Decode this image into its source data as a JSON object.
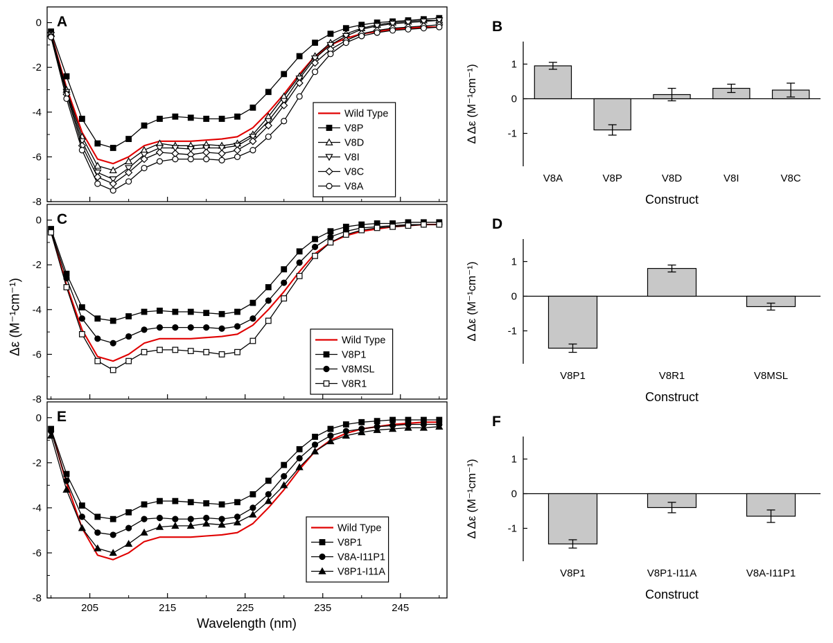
{
  "figure": {
    "shared_y_label": "Δε (M⁻¹cm⁻¹)",
    "shared_x_label": "Wavelength (nm)"
  },
  "chart_data": [
    {
      "id": "A",
      "type": "line",
      "panel_label": "A",
      "xlim": [
        199.5,
        251
      ],
      "ylim": [
        -8,
        0.7
      ],
      "xticks": [
        205,
        215,
        225,
        235,
        245
      ],
      "yticks": [
        0,
        -2,
        -4,
        -6,
        -8
      ],
      "x": [
        200,
        202,
        204,
        206,
        208,
        210,
        212,
        214,
        216,
        218,
        220,
        222,
        224,
        226,
        228,
        230,
        232,
        234,
        236,
        238,
        240,
        242,
        244,
        246,
        248,
        250
      ],
      "series": [
        {
          "name": "Wild Type",
          "color": "#e00000",
          "marker": "none",
          "values": [
            -0.5,
            -2.9,
            -4.9,
            -6.1,
            -6.3,
            -6.0,
            -5.5,
            -5.3,
            -5.3,
            -5.3,
            -5.25,
            -5.2,
            -5.1,
            -4.7,
            -4.0,
            -3.2,
            -2.3,
            -1.5,
            -1.0,
            -0.7,
            -0.5,
            -0.4,
            -0.3,
            -0.25,
            -0.2,
            -0.2
          ]
        },
        {
          "name": "V8P",
          "color": "#000000",
          "marker": "square",
          "values": [
            -0.4,
            -2.4,
            -4.3,
            -5.4,
            -5.6,
            -5.2,
            -4.6,
            -4.3,
            -4.2,
            -4.25,
            -4.3,
            -4.3,
            -4.2,
            -3.8,
            -3.1,
            -2.3,
            -1.5,
            -0.9,
            -0.5,
            -0.25,
            -0.1,
            0.0,
            0.05,
            0.1,
            0.15,
            0.2
          ]
        },
        {
          "name": "V8D",
          "color": "#000000",
          "marker": "triangle-up-open",
          "values": [
            -0.5,
            -3.0,
            -5.1,
            -6.4,
            -6.6,
            -6.2,
            -5.7,
            -5.4,
            -5.5,
            -5.5,
            -5.45,
            -5.5,
            -5.4,
            -5.0,
            -4.2,
            -3.3,
            -2.4,
            -1.5,
            -0.9,
            -0.5,
            -0.25,
            -0.1,
            0.0,
            0.05,
            0.1,
            0.1
          ]
        },
        {
          "name": "V8I",
          "color": "#000000",
          "marker": "triangle-down-open",
          "values": [
            -0.55,
            -3.1,
            -5.3,
            -6.7,
            -7.0,
            -6.5,
            -5.9,
            -5.6,
            -5.6,
            -5.65,
            -5.6,
            -5.6,
            -5.5,
            -5.1,
            -4.4,
            -3.5,
            -2.5,
            -1.6,
            -1.0,
            -0.6,
            -0.3,
            -0.15,
            -0.05,
            0.0,
            0.05,
            0.1
          ]
        },
        {
          "name": "V8C",
          "color": "#000000",
          "marker": "diamond-open",
          "values": [
            -0.6,
            -3.2,
            -5.5,
            -6.9,
            -7.2,
            -6.7,
            -6.1,
            -5.8,
            -5.85,
            -5.9,
            -5.8,
            -5.85,
            -5.7,
            -5.3,
            -4.6,
            -3.7,
            -2.7,
            -1.8,
            -1.2,
            -0.8,
            -0.5,
            -0.35,
            -0.25,
            -0.2,
            -0.15,
            -0.1
          ]
        },
        {
          "name": "V8A",
          "color": "#000000",
          "marker": "circle-open",
          "values": [
            -0.65,
            -3.4,
            -5.7,
            -7.2,
            -7.5,
            -7.1,
            -6.5,
            -6.2,
            -6.1,
            -6.1,
            -6.1,
            -6.15,
            -6.0,
            -5.7,
            -5.1,
            -4.4,
            -3.3,
            -2.2,
            -1.4,
            -0.9,
            -0.6,
            -0.45,
            -0.35,
            -0.3,
            -0.25,
            -0.2
          ]
        }
      ]
    },
    {
      "id": "B",
      "type": "bar",
      "panel_label": "B",
      "categories": [
        "V8A",
        "V8P",
        "V8D",
        "V8I",
        "V8C"
      ],
      "values": [
        0.95,
        -0.9,
        0.12,
        0.3,
        0.25
      ],
      "errors": [
        0.1,
        0.15,
        0.18,
        0.12,
        0.2
      ],
      "ylabel": "Δ Δε (M⁻¹cm⁻¹)",
      "xlabel": "Construct",
      "ylim": [
        -1.95,
        1.65
      ],
      "yticks": [
        1,
        0,
        -1
      ],
      "bar_color": "#c8c8c8"
    },
    {
      "id": "C",
      "type": "line",
      "panel_label": "C",
      "xlim": [
        199.5,
        251
      ],
      "ylim": [
        -8,
        0.7
      ],
      "xticks": [
        205,
        215,
        225,
        235,
        245
      ],
      "yticks": [
        0,
        -2,
        -4,
        -6,
        -8
      ],
      "x": [
        200,
        202,
        204,
        206,
        208,
        210,
        212,
        214,
        216,
        218,
        220,
        222,
        224,
        226,
        228,
        230,
        232,
        234,
        236,
        238,
        240,
        242,
        244,
        246,
        248,
        250
      ],
      "series": [
        {
          "name": "Wild Type",
          "color": "#e00000",
          "marker": "none",
          "values": [
            -0.5,
            -2.9,
            -4.9,
            -6.1,
            -6.3,
            -6.0,
            -5.5,
            -5.3,
            -5.3,
            -5.3,
            -5.25,
            -5.2,
            -5.1,
            -4.7,
            -4.0,
            -3.2,
            -2.3,
            -1.5,
            -1.0,
            -0.7,
            -0.5,
            -0.4,
            -0.3,
            -0.25,
            -0.2,
            -0.2
          ]
        },
        {
          "name": "V8P1",
          "color": "#000000",
          "marker": "square",
          "values": [
            -0.4,
            -2.4,
            -3.9,
            -4.4,
            -4.5,
            -4.3,
            -4.1,
            -4.05,
            -4.1,
            -4.1,
            -4.15,
            -4.2,
            -4.1,
            -3.7,
            -3.0,
            -2.2,
            -1.4,
            -0.85,
            -0.5,
            -0.3,
            -0.2,
            -0.15,
            -0.15,
            -0.1,
            -0.1,
            -0.1
          ]
        },
        {
          "name": "V8MSL",
          "color": "#000000",
          "marker": "circle",
          "values": [
            -0.5,
            -2.6,
            -4.4,
            -5.3,
            -5.5,
            -5.2,
            -4.9,
            -4.8,
            -4.8,
            -4.8,
            -4.8,
            -4.85,
            -4.75,
            -4.4,
            -3.6,
            -2.8,
            -1.9,
            -1.2,
            -0.75,
            -0.5,
            -0.35,
            -0.3,
            -0.25,
            -0.2,
            -0.2,
            -0.2
          ]
        },
        {
          "name": "V8R1",
          "color": "#000000",
          "marker": "square-open",
          "values": [
            -0.55,
            -3.0,
            -5.1,
            -6.3,
            -6.7,
            -6.3,
            -5.9,
            -5.8,
            -5.8,
            -5.85,
            -5.9,
            -6.0,
            -5.9,
            -5.4,
            -4.5,
            -3.5,
            -2.5,
            -1.6,
            -1.0,
            -0.65,
            -0.45,
            -0.35,
            -0.3,
            -0.25,
            -0.2,
            -0.2
          ]
        }
      ]
    },
    {
      "id": "D",
      "type": "bar",
      "panel_label": "D",
      "categories": [
        "V8P1",
        "V8R1",
        "V8MSL"
      ],
      "values": [
        -1.5,
        0.8,
        -0.3
      ],
      "errors": [
        0.12,
        0.1,
        0.1
      ],
      "ylabel": "Δ Δε (M⁻¹cm⁻¹)",
      "xlabel": "Construct",
      "ylim": [
        -1.95,
        1.65
      ],
      "yticks": [
        1,
        0,
        -1
      ],
      "bar_color": "#c8c8c8"
    },
    {
      "id": "E",
      "type": "line",
      "panel_label": "E",
      "xlim": [
        199.5,
        251
      ],
      "ylim": [
        -8,
        0.7
      ],
      "xticks": [
        205,
        215,
        225,
        235,
        245
      ],
      "yticks": [
        0,
        -2,
        -4,
        -6,
        -8
      ],
      "x": [
        200,
        202,
        204,
        206,
        208,
        210,
        212,
        214,
        216,
        218,
        220,
        222,
        224,
        226,
        228,
        230,
        232,
        234,
        236,
        238,
        240,
        242,
        244,
        246,
        248,
        250
      ],
      "series": [
        {
          "name": "Wild Type",
          "color": "#e00000",
          "marker": "none",
          "values": [
            -0.5,
            -2.9,
            -4.9,
            -6.1,
            -6.3,
            -6.0,
            -5.5,
            -5.3,
            -5.3,
            -5.3,
            -5.25,
            -5.2,
            -5.1,
            -4.7,
            -4.0,
            -3.2,
            -2.3,
            -1.5,
            -1.0,
            -0.7,
            -0.5,
            -0.4,
            -0.3,
            -0.25,
            -0.2,
            -0.2
          ]
        },
        {
          "name": "V8P1",
          "color": "#000000",
          "marker": "square",
          "values": [
            -0.5,
            -2.5,
            -3.9,
            -4.4,
            -4.5,
            -4.2,
            -3.85,
            -3.7,
            -3.7,
            -3.75,
            -3.8,
            -3.85,
            -3.75,
            -3.4,
            -2.8,
            -2.1,
            -1.4,
            -0.85,
            -0.5,
            -0.3,
            -0.2,
            -0.15,
            -0.1,
            -0.1,
            -0.1,
            -0.1
          ]
        },
        {
          "name": "V8A-I11P1",
          "color": "#000000",
          "marker": "circle",
          "values": [
            -0.6,
            -2.8,
            -4.4,
            -5.1,
            -5.2,
            -4.9,
            -4.5,
            -4.45,
            -4.5,
            -4.5,
            -4.45,
            -4.5,
            -4.4,
            -4.0,
            -3.4,
            -2.6,
            -1.8,
            -1.2,
            -0.8,
            -0.6,
            -0.5,
            -0.4,
            -0.35,
            -0.3,
            -0.3,
            -0.3
          ]
        },
        {
          "name": "V8P1-I11A",
          "color": "#000000",
          "marker": "triangle-up",
          "values": [
            -0.8,
            -3.2,
            -4.9,
            -5.8,
            -6.0,
            -5.6,
            -5.1,
            -4.85,
            -4.8,
            -4.8,
            -4.7,
            -4.75,
            -4.65,
            -4.3,
            -3.7,
            -3.0,
            -2.2,
            -1.5,
            -1.05,
            -0.8,
            -0.65,
            -0.55,
            -0.5,
            -0.45,
            -0.45,
            -0.4
          ]
        }
      ]
    },
    {
      "id": "F",
      "type": "bar",
      "panel_label": "F",
      "categories": [
        "V8P1",
        "V8P1-I11A",
        "V8A-I11P1"
      ],
      "values": [
        -1.45,
        -0.4,
        -0.65
      ],
      "errors": [
        0.12,
        0.15,
        0.18
      ],
      "ylabel": "Δ Δε (M⁻¹cm⁻¹)",
      "xlabel": "Construct",
      "ylim": [
        -1.95,
        1.65
      ],
      "yticks": [
        1,
        0,
        -1
      ],
      "bar_color": "#c8c8c8"
    }
  ]
}
